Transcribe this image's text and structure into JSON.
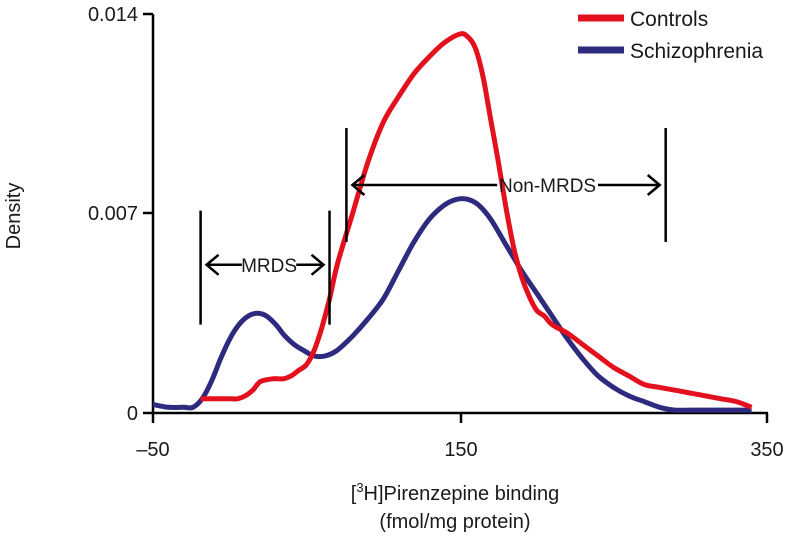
{
  "chart_data": {
    "type": "line",
    "title": "",
    "xlabel_line1_pre": "[",
    "xlabel_sup": "3",
    "xlabel_line1_post": "H]Pirenzepine binding",
    "xlabel_line2": "(fmol/mg protein)",
    "ylabel": "Density",
    "xlim": [
      -50,
      350
    ],
    "ylim": [
      0,
      0.014
    ],
    "x_ticks": [
      -50,
      150,
      350
    ],
    "x_tick_labels": [
      "–50",
      "150",
      "350"
    ],
    "y_ticks": [
      0,
      0.007,
      0.014
    ],
    "y_tick_labels": [
      "0",
      "0.007",
      "0.014"
    ],
    "legend": [
      {
        "name": "Controls",
        "color": "#e3101e"
      },
      {
        "name": "Schizophrenia",
        "color": "#2e2a7e"
      }
    ],
    "series": [
      {
        "name": "Controls",
        "color": "#e3101e",
        "points": [
          [
            -19,
            0.0005
          ],
          [
            -10,
            0.0005
          ],
          [
            0,
            0.0005
          ],
          [
            5,
            0.0005
          ],
          [
            10,
            0.0006
          ],
          [
            15,
            0.0008
          ],
          [
            20,
            0.0011
          ],
          [
            28,
            0.0012
          ],
          [
            35,
            0.0012
          ],
          [
            40,
            0.0013
          ],
          [
            45,
            0.0015
          ],
          [
            50,
            0.0017
          ],
          [
            55,
            0.0022
          ],
          [
            60,
            0.003
          ],
          [
            65,
            0.004
          ],
          [
            70,
            0.0052
          ],
          [
            80,
            0.007
          ],
          [
            90,
            0.0088
          ],
          [
            100,
            0.0102
          ],
          [
            110,
            0.0111
          ],
          [
            120,
            0.0119
          ],
          [
            130,
            0.0125
          ],
          [
            140,
            0.013
          ],
          [
            150,
            0.0133
          ],
          [
            155,
            0.0132
          ],
          [
            160,
            0.0128
          ],
          [
            165,
            0.0118
          ],
          [
            170,
            0.0103
          ],
          [
            175,
            0.0088
          ],
          [
            180,
            0.0072
          ],
          [
            185,
            0.0058
          ],
          [
            190,
            0.0048
          ],
          [
            195,
            0.0041
          ],
          [
            200,
            0.0036
          ],
          [
            205,
            0.0034
          ],
          [
            210,
            0.0031
          ],
          [
            220,
            0.0028
          ],
          [
            230,
            0.0024
          ],
          [
            240,
            0.002
          ],
          [
            250,
            0.0016
          ],
          [
            260,
            0.0013
          ],
          [
            270,
            0.001
          ],
          [
            280,
            0.0009
          ],
          [
            290,
            0.0008
          ],
          [
            300,
            0.0007
          ],
          [
            310,
            0.0006
          ],
          [
            320,
            0.0005
          ],
          [
            330,
            0.0004
          ],
          [
            340,
            0.0002
          ]
        ]
      },
      {
        "name": "Schizophrenia",
        "color": "#2e2a7e",
        "points": [
          [
            -50,
            0.0003
          ],
          [
            -40,
            0.0002
          ],
          [
            -30,
            0.0002
          ],
          [
            -24,
            0.0002
          ],
          [
            -18,
            0.0005
          ],
          [
            -12,
            0.0011
          ],
          [
            -6,
            0.0019
          ],
          [
            0,
            0.0026
          ],
          [
            6,
            0.0031
          ],
          [
            12,
            0.0034
          ],
          [
            18,
            0.0035
          ],
          [
            24,
            0.0034
          ],
          [
            30,
            0.0031
          ],
          [
            36,
            0.0027
          ],
          [
            42,
            0.0024
          ],
          [
            48,
            0.0022
          ],
          [
            55,
            0.002
          ],
          [
            62,
            0.002
          ],
          [
            70,
            0.0022
          ],
          [
            80,
            0.0027
          ],
          [
            90,
            0.0033
          ],
          [
            100,
            0.004
          ],
          [
            110,
            0.005
          ],
          [
            120,
            0.006
          ],
          [
            130,
            0.0068
          ],
          [
            140,
            0.0073
          ],
          [
            148,
            0.0075
          ],
          [
            155,
            0.0075
          ],
          [
            162,
            0.0073
          ],
          [
            170,
            0.0068
          ],
          [
            180,
            0.0059
          ],
          [
            190,
            0.005
          ],
          [
            200,
            0.0042
          ],
          [
            210,
            0.0034
          ],
          [
            220,
            0.0026
          ],
          [
            230,
            0.0019
          ],
          [
            240,
            0.0013
          ],
          [
            250,
            0.0009
          ],
          [
            260,
            0.0006
          ],
          [
            270,
            0.0004
          ],
          [
            280,
            0.0002
          ],
          [
            290,
            0.0001
          ],
          [
            300,
            0.0001
          ],
          [
            320,
            0.0001
          ],
          [
            340,
            0.0001
          ]
        ]
      }
    ],
    "annotations": [
      {
        "label": "MRDS",
        "range": [
          -19,
          65
        ],
        "arrow_y": 0.0052,
        "bar_top": 0.0071,
        "bar_bottom": 0.0031
      },
      {
        "label": "Non-MRDS",
        "range": [
          76,
          284
        ],
        "arrow_y": 0.008,
        "bar_top": 0.01,
        "bar_bottom": 0.006
      }
    ]
  }
}
